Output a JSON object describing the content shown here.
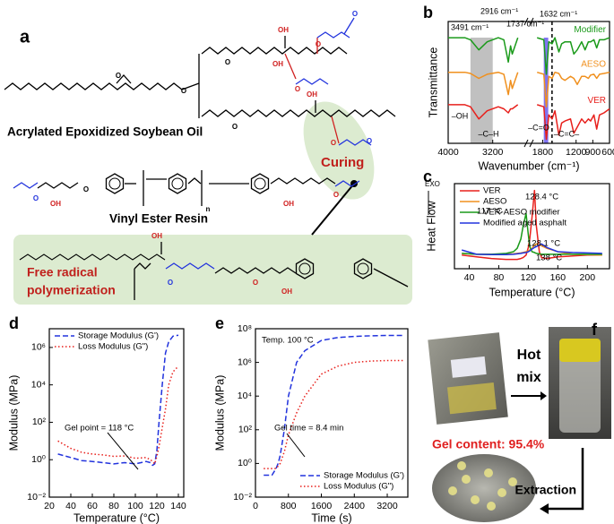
{
  "panel_a": {
    "label": "a",
    "aeso_name": "Acrylated Epoxidized Soybean Oil",
    "ver_name": "Vinyl Ester Resin",
    "curing": "Curing",
    "polymerization": [
      "Free radical",
      "polymerization"
    ],
    "atoms": [
      "O",
      "O",
      "O",
      "OH",
      "O",
      "O",
      "O",
      "OH",
      "O",
      "OH",
      "O",
      "O",
      "O",
      "OH",
      "O",
      "n",
      "OH",
      "O",
      "OH",
      "O",
      "O",
      "OH"
    ]
  },
  "panel_f": {
    "label": "f",
    "hot_mix": [
      "Hot",
      "mix"
    ],
    "gel_content": "Gel content: 95.4%",
    "extraction": "Extraction"
  },
  "chart_data": [
    {
      "type": "line",
      "label": "b",
      "xlabel": "Wavenumber (cm⁻¹)",
      "ylabel": "Transmittance",
      "xlim": [
        4000,
        600
      ],
      "xbreak": [
        2600,
        2000
      ],
      "xticks": [
        4000,
        3200,
        1800,
        1200,
        900,
        600
      ],
      "ylim": [
        0,
        3
      ],
      "legend": "inline",
      "bands": [
        {
          "range": [
            3600,
            3200
          ],
          "color": "#b5b5b5"
        },
        {
          "range": [
            1780,
            1700
          ],
          "color": "#6a5cf0"
        }
      ],
      "vline": 1632,
      "annotations": [
        "3491 cm⁻¹",
        "2916 cm⁻¹",
        "1737 cm⁻¹",
        "1632 cm⁻¹",
        "–OH",
        "–C–H",
        "–C=O",
        "–C=C–"
      ],
      "x": [
        4000,
        3700,
        3600,
        3450,
        3300,
        3100,
        3000,
        2920,
        2880,
        2850,
        2750,
        2300,
        1900,
        1780,
        1735,
        1690,
        1632,
        1580,
        1510,
        1460,
        1400,
        1300,
        1240,
        1180,
        1100,
        1040,
        980,
        940,
        880,
        830,
        780,
        700,
        600
      ],
      "series": [
        {
          "name": "Modifier",
          "color": "#1a9a1a",
          "values": [
            2.6,
            2.6,
            2.55,
            2.3,
            2.5,
            2.6,
            2.55,
            2.0,
            2.4,
            2.2,
            2.6,
            null,
            2.6,
            2.55,
            1.7,
            2.5,
            2.45,
            2.6,
            2.25,
            2.45,
            2.5,
            2.5,
            2.2,
            2.3,
            2.5,
            2.3,
            2.5,
            2.5,
            2.55,
            2.35,
            2.55,
            2.55,
            2.6
          ]
        },
        {
          "name": "AESO",
          "color": "#f0901e",
          "values": [
            1.75,
            1.75,
            1.72,
            1.6,
            1.7,
            1.75,
            1.7,
            1.2,
            1.55,
            1.35,
            1.75,
            null,
            1.75,
            1.7,
            0.9,
            1.65,
            1.6,
            1.75,
            1.72,
            1.6,
            1.55,
            1.65,
            1.6,
            1.45,
            1.65,
            1.65,
            1.6,
            1.68,
            1.7,
            1.6,
            1.7,
            1.72,
            1.75
          ]
        },
        {
          "name": "VER",
          "color": "#e8201c",
          "values": [
            0.95,
            0.95,
            0.9,
            0.6,
            0.8,
            0.9,
            0.85,
            0.75,
            0.85,
            0.85,
            0.95,
            null,
            0.95,
            0.9,
            0.1,
            0.7,
            0.6,
            0.8,
            0.2,
            0.5,
            0.55,
            0.6,
            0.25,
            0.4,
            0.6,
            0.5,
            0.6,
            0.55,
            0.7,
            0.35,
            0.7,
            0.75,
            0.85
          ]
        }
      ]
    },
    {
      "type": "line",
      "label": "c",
      "xlabel": "Temperature (°C)",
      "ylabel": "Heat Flow",
      "exo": "EXO",
      "xlim": [
        20,
        230
      ],
      "xticks": [
        40,
        80,
        120,
        160,
        200
      ],
      "ylim": [
        0,
        10
      ],
      "legend": "upper left",
      "annotations": [
        "128.4 °C",
        "117 °C",
        "128.1 °C",
        "138 °C"
      ],
      "x": [
        30,
        50,
        70,
        90,
        100,
        105,
        110,
        113,
        117,
        120,
        122,
        125,
        128.4,
        131,
        135,
        138,
        145,
        160,
        180,
        200,
        220
      ],
      "series": [
        {
          "name": "VER",
          "color": "#e8201c",
          "values": [
            1.6,
            1.4,
            1.2,
            1.1,
            1.1,
            1.1,
            1.2,
            1.3,
            1.6,
            2.5,
            3.5,
            6,
            9.2,
            5,
            2,
            1.3,
            1.2,
            1.4,
            1.5,
            1.6,
            1.6
          ]
        },
        {
          "name": "AESO",
          "color": "#f0901e",
          "values": [
            1.8,
            1.7,
            1.7,
            1.7,
            1.75,
            1.8,
            1.85,
            1.9,
            2.0,
            2.1,
            2.2,
            2.4,
            2.8,
            2.9,
            2.8,
            2.7,
            2.4,
            2.0,
            1.7,
            1.65,
            1.6
          ]
        },
        {
          "name": "VER-AESO modifier",
          "color": "#1a9a1a",
          "values": [
            1.8,
            1.7,
            1.7,
            1.8,
            2.0,
            2.4,
            3.5,
            5,
            6.5,
            4,
            2.6,
            2.0,
            1.9,
            1.8,
            1.75,
            1.7,
            1.7,
            1.7,
            1.7,
            1.7,
            1.7
          ]
        },
        {
          "name": "Modified aged asphalt",
          "color": "#2233dd",
          "values": [
            2.2,
            1.7,
            1.65,
            1.65,
            1.7,
            1.75,
            1.8,
            1.85,
            1.9,
            2.0,
            2.1,
            2.3,
            2.5,
            2.6,
            2.8,
            2.9,
            2.5,
            2.0,
            1.9,
            1.85,
            1.8
          ]
        }
      ]
    },
    {
      "type": "line",
      "label": "d",
      "xlabel": "Temperature (°C)",
      "ylabel": "Modulus (MPa)",
      "xlim": [
        20,
        145
      ],
      "xticks": [
        20,
        40,
        60,
        80,
        100,
        120,
        140
      ],
      "ylim": [
        0.01,
        10000000
      ],
      "log_y": true,
      "yticks": [
        {
          "value": 0.01,
          "label": "10⁻²"
        },
        {
          "value": 1,
          "label": "10⁰"
        },
        {
          "value": 100,
          "label": "10²"
        },
        {
          "value": 10000,
          "label": "10⁴"
        },
        {
          "value": 1000000,
          "label": "10⁶"
        }
      ],
      "legend": "upper left",
      "annotations": [
        "Gel point = 118 °C"
      ],
      "x": [
        28,
        40,
        50,
        60,
        70,
        80,
        90,
        100,
        110,
        114,
        116,
        118,
        120,
        122,
        125,
        128,
        131,
        135,
        140
      ],
      "series": [
        {
          "name": "Storage Modulus (G')",
          "color": "#2233dd",
          "dash": "dashed",
          "values": [
            2,
            1.3,
            0.9,
            0.8,
            0.7,
            0.6,
            0.7,
            0.6,
            0.8,
            0.7,
            0.5,
            0.6,
            3,
            100,
            10000,
            500000,
            2000000,
            4000000,
            4500000
          ]
        },
        {
          "name": "Loss Modulus (G\")",
          "color": "#e8201c",
          "dash": "dotted",
          "values": [
            10,
            4,
            2.5,
            2,
            1.8,
            1.5,
            1.6,
            1.2,
            1.3,
            1.0,
            0.8,
            0.6,
            1.5,
            5,
            50,
            500,
            10000,
            50000,
            100000
          ]
        }
      ]
    },
    {
      "type": "line",
      "label": "e",
      "xlabel": "Time (s)",
      "ylabel": "Modulus (MPa)",
      "xlim": [
        0,
        3700
      ],
      "xticks": [
        0,
        800,
        1600,
        2400,
        3200
      ],
      "ylim": [
        0.01,
        100000000
      ],
      "log_y": true,
      "yticks": [
        {
          "value": 0.01,
          "label": "10⁻²"
        },
        {
          "value": 1,
          "label": "10⁰"
        },
        {
          "value": 100,
          "label": "10²"
        },
        {
          "value": 10000,
          "label": "10⁴"
        },
        {
          "value": 1000000,
          "label": "10⁶"
        },
        {
          "value": 100000000,
          "label": "10⁸"
        }
      ],
      "legend": "lower right",
      "annotations": [
        "Temp. 100 °C",
        "Gel time = 8.4 min"
      ],
      "x": [
        200,
        300,
        400,
        500,
        550,
        600,
        700,
        800,
        1000,
        1200,
        1600,
        2000,
        2400,
        2800,
        3200,
        3600
      ],
      "series": [
        {
          "name": "Storage Modulus (G')",
          "color": "#2233dd",
          "dash": "dashed",
          "values": [
            0.2,
            0.2,
            0.2,
            0.5,
            1,
            3,
            100,
            10000,
            1000000,
            5000000,
            20000000,
            30000000,
            35000000,
            38000000,
            40000000,
            40000000
          ]
        },
        {
          "name": "Loss Modulus (G\")",
          "color": "#e8201c",
          "dash": "dotted",
          "values": [
            0.5,
            0.5,
            0.5,
            0.5,
            0.7,
            1,
            5,
            50,
            1000,
            10000,
            200000,
            600000,
            1000000,
            1200000,
            1300000,
            1300000
          ]
        }
      ]
    }
  ]
}
